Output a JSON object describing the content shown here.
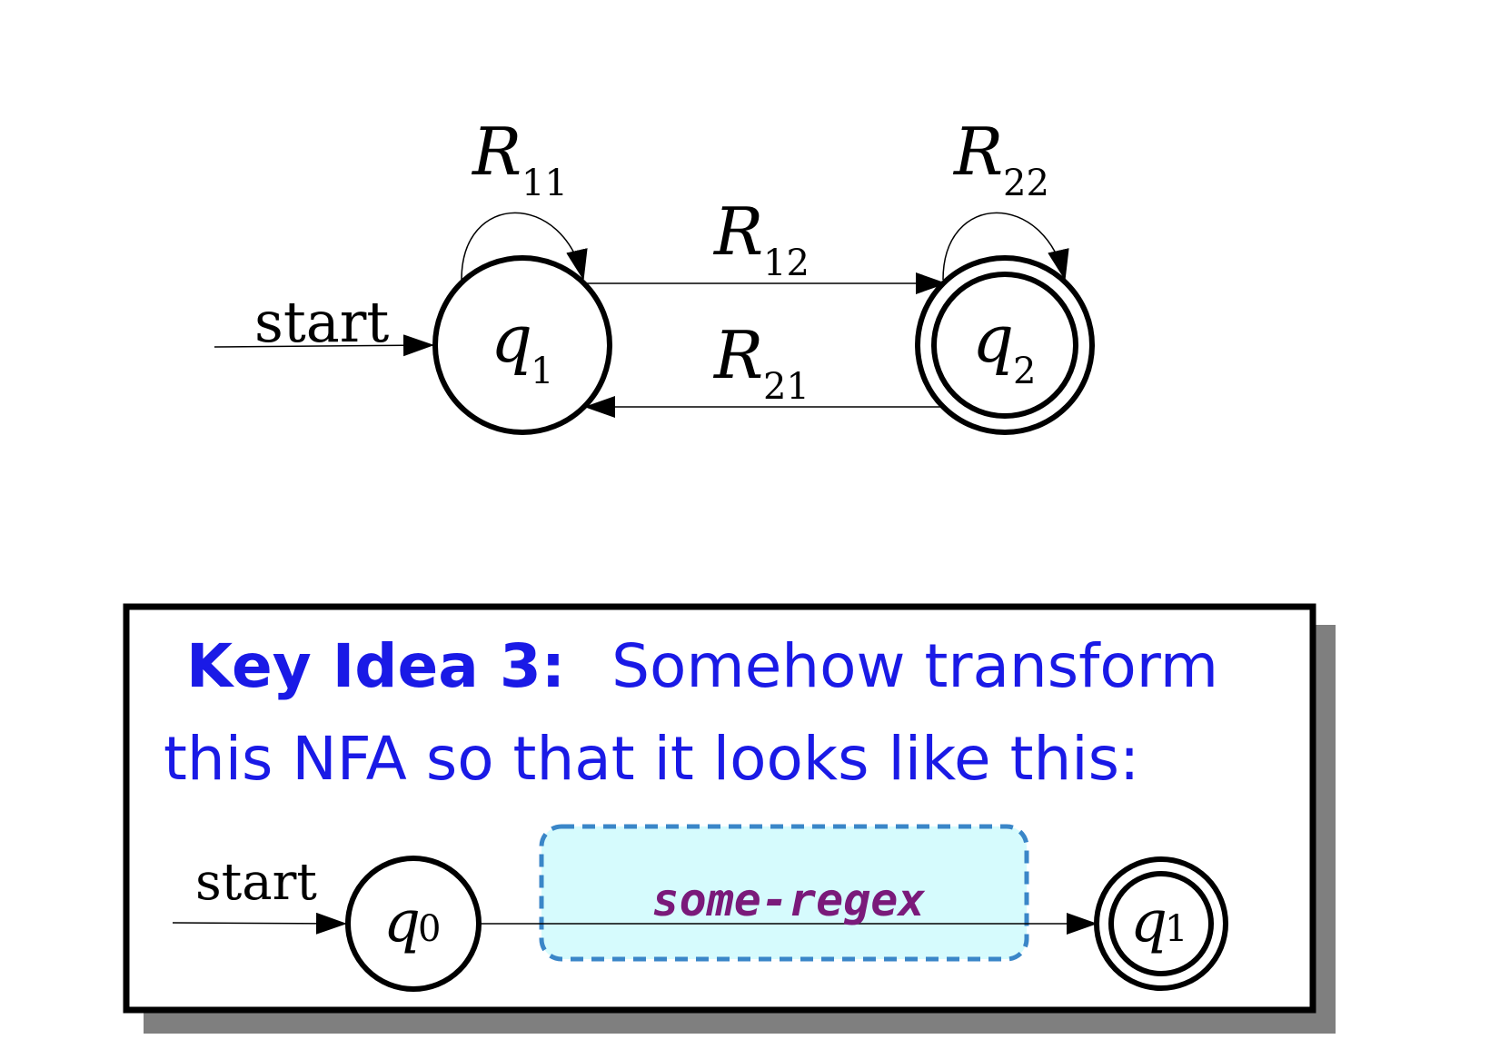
{
  "top_nfa": {
    "start_label": "start",
    "states": [
      {
        "id": "q1",
        "base": "q",
        "sub": "1",
        "accepting": false
      },
      {
        "id": "q2",
        "base": "q",
        "sub": "2",
        "accepting": true
      }
    ],
    "transitions": [
      {
        "from": "q1",
        "to": "q1",
        "base": "R",
        "sub": "11"
      },
      {
        "from": "q1",
        "to": "q2",
        "base": "R",
        "sub": "12"
      },
      {
        "from": "q2",
        "to": "q1",
        "base": "R",
        "sub": "21"
      },
      {
        "from": "q2",
        "to": "q2",
        "base": "R",
        "sub": "22"
      }
    ]
  },
  "key_idea": {
    "title_bold": "Key Idea 3:",
    "title_rest": "Somehow transform",
    "line2": "this NFA so that it looks like this:",
    "text_color": "#1a1ae6",
    "mini_nfa": {
      "start_label": "start",
      "states": [
        {
          "id": "q0",
          "base": "q",
          "sub": "0",
          "accepting": false
        },
        {
          "id": "q1",
          "base": "q",
          "sub": "1",
          "accepting": true
        }
      ],
      "edge_label": "some-regex",
      "edge_label_color": "#7a1a7a",
      "box_fill": "#d6fbfd",
      "box_border": "#3a86c8"
    }
  }
}
